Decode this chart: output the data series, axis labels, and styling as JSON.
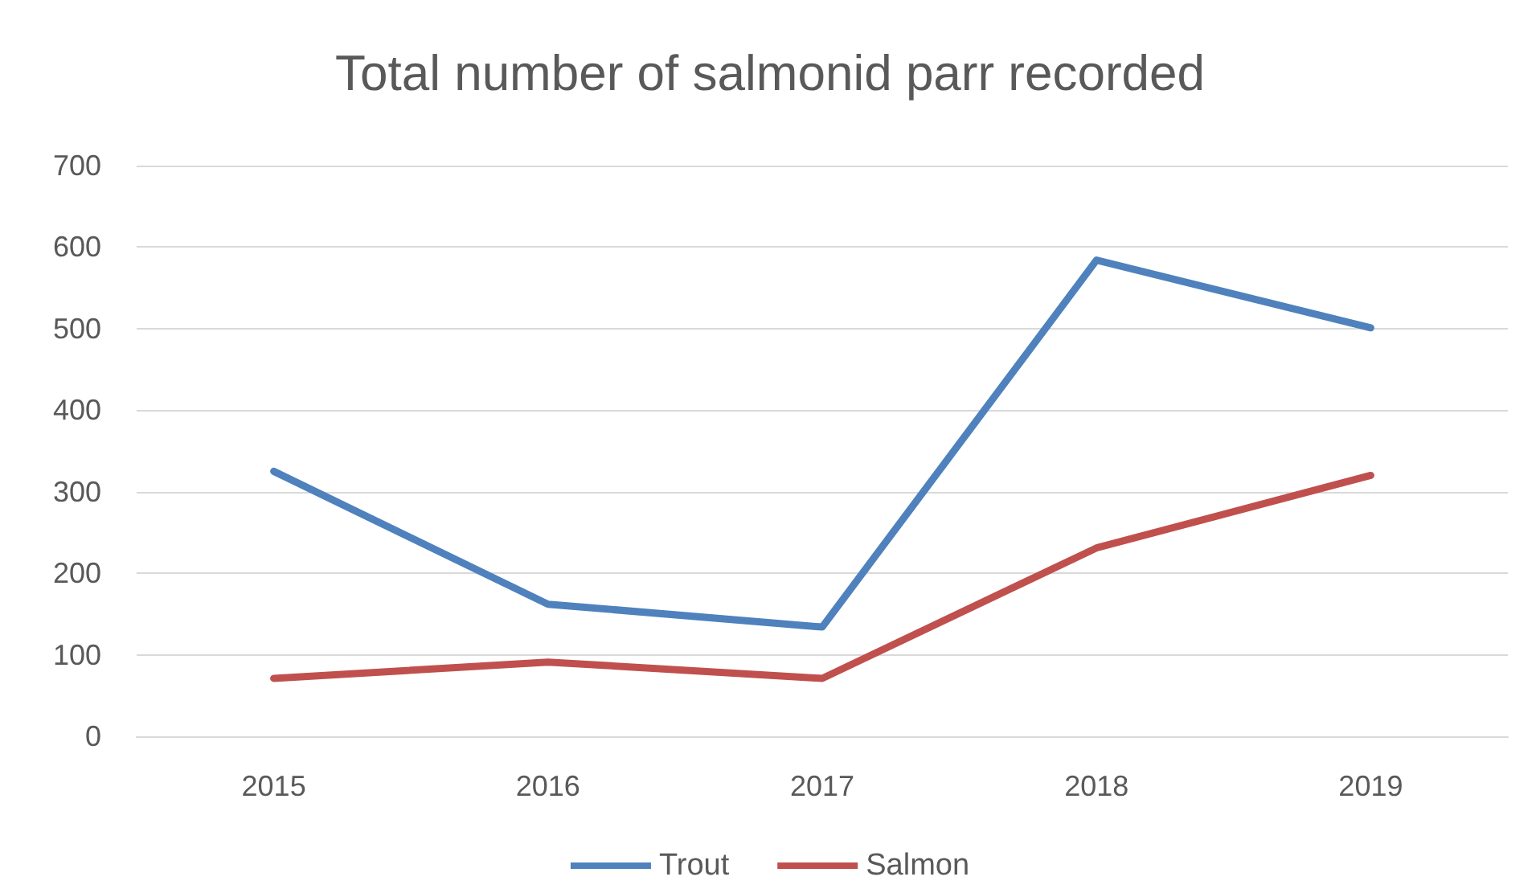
{
  "chart_data": {
    "type": "line",
    "title": "Total number of salmonid parr recorded",
    "categories": [
      "2015",
      "2016",
      "2017",
      "2018",
      "2019"
    ],
    "series": [
      {
        "name": "Trout",
        "color": "#4f81bd",
        "values": [
          325,
          162,
          134,
          584,
          501
        ]
      },
      {
        "name": "Salmon",
        "color": "#c0504d",
        "values": [
          71,
          91,
          71,
          231,
          320
        ]
      }
    ],
    "ylim": [
      0,
      700
    ],
    "yticks": [
      0,
      100,
      200,
      300,
      400,
      500,
      600,
      700
    ],
    "grid": "y",
    "legend": "bottom",
    "marker": "none",
    "line_style": "solid"
  }
}
